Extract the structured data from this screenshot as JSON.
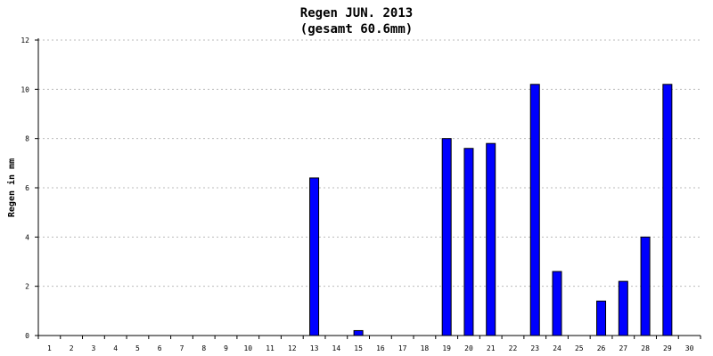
{
  "chart_data": {
    "type": "bar",
    "title": "Regen JUN. 2013",
    "subtitle": "(gesamt 60.6mm)",
    "xlabel": "",
    "ylabel": "Regen in mm",
    "ylim": [
      0,
      12
    ],
    "yticks": [
      "0",
      "2",
      "4",
      "6",
      "8",
      "10",
      "12"
    ],
    "grid": true,
    "bar_color": "#0000ff",
    "categories": [
      "1",
      "2",
      "3",
      "4",
      "5",
      "6",
      "7",
      "8",
      "9",
      "10",
      "11",
      "12",
      "13",
      "14",
      "15",
      "16",
      "17",
      "18",
      "19",
      "20",
      "21",
      "22",
      "23",
      "24",
      "25",
      "26",
      "27",
      "28",
      "29",
      "30"
    ],
    "values": [
      0,
      0,
      0,
      0,
      0,
      0,
      0,
      0,
      0,
      0,
      0,
      0,
      6.4,
      0,
      0.2,
      0,
      0,
      0,
      8.0,
      7.6,
      7.8,
      0,
      10.2,
      2.6,
      0,
      1.4,
      2.2,
      4.0,
      10.2,
      0
    ]
  }
}
